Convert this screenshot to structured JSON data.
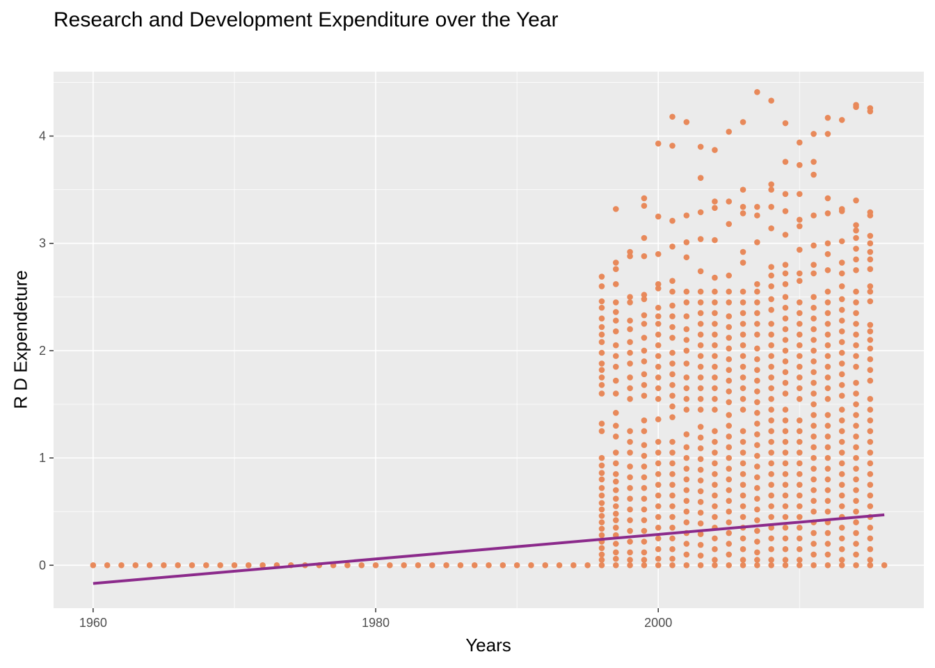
{
  "chart_data": {
    "type": "scatter",
    "title": "Research and Development Expenditure over the Year",
    "xlabel": "Years",
    "ylabel": "R D Expendeture",
    "xlim": [
      1957.2,
      2018.8
    ],
    "ylim": [
      -0.4,
      4.6
    ],
    "x_ticks": [
      1960,
      1980,
      2000
    ],
    "y_ticks": [
      0,
      1,
      2,
      3,
      4
    ],
    "grid": true,
    "legend": "none",
    "colors": {
      "panel": "#ebebeb",
      "grid": "#ffffff",
      "points": "#e8895a",
      "trend": "#8b2a8b"
    },
    "zero_years": [
      1960,
      1961,
      1962,
      1963,
      1964,
      1965,
      1966,
      1967,
      1968,
      1969,
      1970,
      1971,
      1972,
      1973,
      1974,
      1975,
      1976,
      1977,
      1978,
      1979,
      1980,
      1981,
      1982,
      1983,
      1984,
      1985,
      1986,
      1987,
      1988,
      1989,
      1990,
      1991,
      1992,
      1993,
      1994,
      1995,
      2015,
      2016
    ],
    "points_by_year": [
      {
        "year": 1996,
        "values": [
          2.69,
          2.6,
          2.46,
          2.4,
          2.3,
          2.22,
          2.15,
          2.08,
          1.98,
          1.88,
          1.82,
          1.75,
          1.68,
          1.6,
          1.32,
          1.25,
          1.0,
          0.93,
          0.86,
          0.8,
          0.72,
          0.65,
          0.58,
          0.52,
          0.46,
          0.4,
          0.34,
          0.28,
          0.22,
          0.16,
          0.1,
          0.05,
          0.0
        ]
      },
      {
        "year": 1997,
        "values": [
          3.32,
          2.82,
          2.76,
          2.62,
          2.45,
          2.36,
          2.28,
          2.18,
          2.05,
          1.95,
          1.85,
          1.72,
          1.6,
          1.42,
          1.3,
          1.2,
          1.05,
          0.95,
          0.85,
          0.78,
          0.7,
          0.62,
          0.55,
          0.48,
          0.42,
          0.35,
          0.28,
          0.2,
          0.12,
          0.06,
          0.0
        ]
      },
      {
        "year": 1998,
        "values": [
          2.92,
          2.88,
          2.5,
          2.45,
          2.28,
          2.2,
          2.08,
          1.98,
          1.88,
          1.75,
          1.65,
          1.55,
          1.25,
          1.15,
          1.05,
          0.92,
          0.82,
          0.72,
          0.62,
          0.52,
          0.42,
          0.32,
          0.22,
          0.12,
          0.05,
          0.0
        ]
      },
      {
        "year": 1999,
        "values": [
          3.42,
          3.35,
          3.05,
          2.88,
          2.52,
          2.48,
          2.33,
          2.25,
          2.12,
          2.0,
          1.9,
          1.78,
          1.68,
          1.58,
          1.35,
          1.25,
          1.12,
          1.02,
          0.92,
          0.82,
          0.72,
          0.62,
          0.52,
          0.42,
          0.32,
          0.22,
          0.12,
          0.05,
          0.0
        ]
      },
      {
        "year": 2000,
        "values": [
          3.93,
          3.25,
          2.9,
          2.62,
          2.58,
          2.4,
          2.32,
          2.25,
          2.15,
          2.05,
          1.95,
          1.85,
          1.75,
          1.65,
          1.55,
          1.36,
          1.15,
          1.05,
          0.95,
          0.85,
          0.75,
          0.65,
          0.55,
          0.45,
          0.35,
          0.25,
          0.15,
          0.06,
          0.0
        ]
      },
      {
        "year": 2001,
        "values": [
          4.18,
          3.91,
          3.21,
          2.97,
          2.65,
          2.55,
          2.42,
          2.32,
          2.22,
          2.12,
          1.98,
          1.88,
          1.78,
          1.68,
          1.58,
          1.48,
          1.38,
          1.15,
          1.05,
          0.95,
          0.85,
          0.75,
          0.65,
          0.55,
          0.45,
          0.35,
          0.25,
          0.15,
          0.06,
          0.0
        ]
      },
      {
        "year": 2002,
        "values": [
          4.13,
          3.26,
          3.01,
          2.87,
          2.55,
          2.45,
          2.32,
          2.2,
          2.1,
          2.0,
          1.88,
          1.75,
          1.65,
          1.55,
          1.45,
          1.22,
          1.1,
          1.0,
          0.9,
          0.8,
          0.7,
          0.6,
          0.5,
          0.4,
          0.3,
          0.2,
          0.1,
          0.0
        ]
      },
      {
        "year": 2003,
        "values": [
          3.9,
          3.61,
          3.29,
          3.04,
          2.74,
          2.55,
          2.45,
          2.35,
          2.25,
          2.15,
          2.05,
          1.95,
          1.85,
          1.75,
          1.65,
          1.55,
          1.45,
          1.29,
          1.19,
          1.09,
          0.99,
          0.89,
          0.79,
          0.69,
          0.59,
          0.49,
          0.39,
          0.29,
          0.19,
          0.09,
          0.0
        ]
      },
      {
        "year": 2004,
        "values": [
          3.87,
          3.39,
          3.33,
          3.03,
          2.68,
          2.55,
          2.45,
          2.35,
          2.25,
          2.15,
          2.05,
          1.95,
          1.85,
          1.75,
          1.65,
          1.55,
          1.45,
          1.25,
          1.15,
          1.05,
          0.95,
          0.85,
          0.75,
          0.65,
          0.55,
          0.45,
          0.35,
          0.25,
          0.15,
          0.05,
          0.0
        ]
      },
      {
        "year": 2005,
        "values": [
          4.04,
          3.39,
          3.18,
          2.7,
          2.55,
          2.45,
          2.32,
          2.22,
          2.12,
          2.02,
          1.92,
          1.82,
          1.72,
          1.62,
          1.52,
          1.4,
          1.3,
          1.2,
          1.1,
          1.0,
          0.9,
          0.8,
          0.7,
          0.6,
          0.5,
          0.4,
          0.3,
          0.2,
          0.1,
          0.0
        ]
      },
      {
        "year": 2006,
        "values": [
          4.13,
          3.5,
          3.34,
          3.28,
          2.92,
          2.82,
          2.55,
          2.45,
          2.35,
          2.25,
          2.15,
          2.05,
          1.95,
          1.85,
          1.75,
          1.65,
          1.55,
          1.45,
          1.25,
          1.15,
          1.05,
          0.95,
          0.85,
          0.75,
          0.65,
          0.55,
          0.45,
          0.35,
          0.25,
          0.15,
          0.05,
          0.0
        ]
      },
      {
        "year": 2007,
        "values": [
          4.41,
          3.34,
          3.26,
          3.01,
          2.62,
          2.55,
          2.45,
          2.35,
          2.25,
          2.15,
          2.02,
          1.92,
          1.82,
          1.72,
          1.62,
          1.52,
          1.42,
          1.32,
          1.22,
          1.12,
          1.02,
          0.92,
          0.82,
          0.72,
          0.62,
          0.52,
          0.42,
          0.32,
          0.22,
          0.12,
          0.05,
          0.0
        ]
      },
      {
        "year": 2008,
        "values": [
          4.33,
          3.55,
          3.5,
          3.34,
          3.14,
          2.78,
          2.7,
          2.6,
          2.48,
          2.38,
          2.25,
          2.15,
          2.05,
          1.95,
          1.85,
          1.75,
          1.65,
          1.55,
          1.45,
          1.35,
          1.25,
          1.15,
          1.05,
          0.95,
          0.85,
          0.75,
          0.65,
          0.55,
          0.45,
          0.35,
          0.25,
          0.15,
          0.05,
          0.0
        ]
      },
      {
        "year": 2009,
        "values": [
          4.12,
          3.76,
          3.46,
          3.3,
          3.08,
          2.8,
          2.72,
          2.62,
          2.5,
          2.4,
          2.3,
          2.2,
          2.1,
          2.0,
          1.9,
          1.8,
          1.7,
          1.6,
          1.45,
          1.35,
          1.25,
          1.15,
          1.05,
          0.95,
          0.85,
          0.75,
          0.65,
          0.55,
          0.45,
          0.35,
          0.25,
          0.15,
          0.05,
          0.0
        ]
      },
      {
        "year": 2010,
        "values": [
          3.94,
          3.73,
          3.46,
          3.22,
          3.16,
          2.94,
          2.72,
          2.65,
          2.45,
          2.35,
          2.25,
          2.15,
          2.05,
          1.95,
          1.85,
          1.75,
          1.65,
          1.55,
          1.35,
          1.25,
          1.15,
          1.05,
          0.95,
          0.85,
          0.75,
          0.65,
          0.55,
          0.45,
          0.35,
          0.25,
          0.15,
          0.05,
          0.0
        ]
      },
      {
        "year": 2011,
        "values": [
          4.02,
          3.76,
          3.64,
          3.26,
          2.98,
          2.8,
          2.72,
          2.5,
          2.4,
          2.3,
          2.2,
          2.1,
          2.0,
          1.9,
          1.8,
          1.7,
          1.6,
          1.5,
          1.4,
          1.3,
          1.2,
          1.1,
          1.0,
          0.9,
          0.8,
          0.7,
          0.6,
          0.5,
          0.4,
          0.3,
          0.2,
          0.1,
          0.0
        ]
      },
      {
        "year": 2012,
        "values": [
          4.17,
          4.02,
          3.42,
          3.28,
          3.0,
          2.9,
          2.75,
          2.55,
          2.45,
          2.35,
          2.25,
          2.15,
          2.05,
          1.95,
          1.85,
          1.75,
          1.65,
          1.55,
          1.4,
          1.3,
          1.2,
          1.1,
          1.0,
          0.9,
          0.8,
          0.7,
          0.6,
          0.5,
          0.4,
          0.3,
          0.2,
          0.1,
          0.0
        ]
      },
      {
        "year": 2013,
        "values": [
          4.15,
          3.32,
          3.3,
          3.02,
          2.82,
          2.72,
          2.6,
          2.48,
          2.38,
          2.28,
          2.18,
          2.08,
          1.98,
          1.88,
          1.78,
          1.68,
          1.58,
          1.45,
          1.35,
          1.25,
          1.15,
          1.05,
          0.95,
          0.85,
          0.75,
          0.65,
          0.55,
          0.45,
          0.35,
          0.25,
          0.15,
          0.05,
          0.0
        ]
      },
      {
        "year": 2014,
        "values": [
          4.29,
          4.27,
          3.4,
          3.17,
          3.12,
          3.05,
          2.95,
          2.85,
          2.75,
          2.55,
          2.45,
          2.35,
          2.25,
          2.15,
          2.05,
          1.95,
          1.85,
          1.7,
          1.6,
          1.5,
          1.4,
          1.3,
          1.2,
          1.1,
          1.0,
          0.9,
          0.8,
          0.7,
          0.6,
          0.5,
          0.4,
          0.3,
          0.2,
          0.1,
          0.0
        ]
      },
      {
        "year": 2015,
        "values": [
          4.26,
          4.23,
          3.29,
          3.26,
          3.07,
          3.0,
          2.92,
          2.85,
          2.76,
          2.6,
          2.55,
          2.46,
          2.24,
          2.18,
          2.1,
          2.02,
          1.92,
          1.82,
          1.72,
          1.55,
          1.45,
          1.35,
          1.25,
          1.15,
          1.05,
          0.95,
          0.85,
          0.75,
          0.65,
          0.55,
          0.45,
          0.35,
          0.25,
          0.15,
          0.05,
          0.0
        ]
      }
    ],
    "trend_line": [
      {
        "x": 1960,
        "y": -0.17
      },
      {
        "x": 2016,
        "y": 0.47
      }
    ]
  }
}
